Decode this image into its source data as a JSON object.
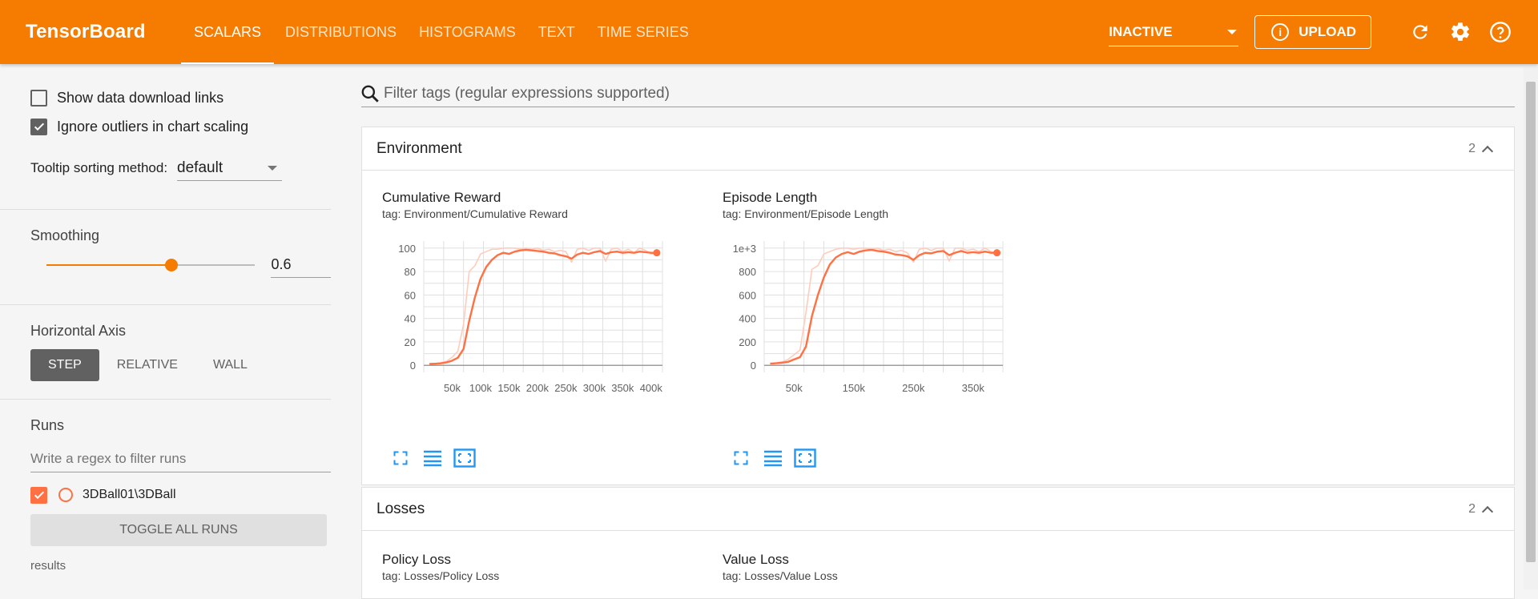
{
  "app": {
    "title": "TensorBoard",
    "tabs": [
      "SCALARS",
      "DISTRIBUTIONS",
      "HISTOGRAMS",
      "TEXT",
      "TIME SERIES"
    ],
    "status_select": "INACTIVE",
    "upload_label": "UPLOAD",
    "accent": "#f57c00"
  },
  "sidebar": {
    "show_download_links": "Show data download links",
    "ignore_outliers": "Ignore outliers in chart scaling",
    "tooltip_label": "Tooltip sorting method:",
    "tooltip_value": "default",
    "smoothing_label": "Smoothing",
    "smoothing_value": "0.6",
    "smoothing_fraction": 0.6,
    "axis_label": "Horizontal Axis",
    "axis_options": [
      "STEP",
      "RELATIVE",
      "WALL"
    ],
    "runs_label": "Runs",
    "runs_filter_placeholder": "Write a regex to filter runs",
    "run_name": "3DBall01\\3DBall",
    "toggle_all": "TOGGLE ALL RUNS",
    "results": "results"
  },
  "main": {
    "filter_placeholder": "Filter tags (regular expressions supported)",
    "groups": [
      {
        "name": "Environment",
        "count": "2"
      },
      {
        "name": "Losses",
        "count": "2"
      }
    ],
    "env_charts": [
      {
        "title": "Cumulative Reward",
        "tag": "tag: Environment/Cumulative Reward"
      },
      {
        "title": "Episode Length",
        "tag": "tag: Environment/Episode Length"
      }
    ],
    "loss_charts": [
      {
        "title": "Policy Loss",
        "tag": "tag: Losses/Policy Loss"
      },
      {
        "title": "Value Loss",
        "tag": "tag: Losses/Value Loss"
      }
    ]
  },
  "chart_data": [
    {
      "type": "line",
      "title": "Cumulative Reward",
      "xlim": [
        0,
        420000
      ],
      "ylim": [
        0,
        100
      ],
      "xticks": [
        50000,
        100000,
        150000,
        200000,
        250000,
        300000,
        350000,
        400000
      ],
      "xtick_labels": [
        "50k",
        "100k",
        "150k",
        "200k",
        "250k",
        "300k",
        "350k",
        "400k"
      ],
      "yticks": [
        0,
        20,
        40,
        60,
        80,
        100
      ],
      "ytick_labels": [
        "0",
        "20",
        "40",
        "60",
        "80",
        "100"
      ],
      "grid": true,
      "series": [
        {
          "role": "smoothed",
          "color": "#ff7043",
          "x": [
            10000,
            20000,
            30000,
            40000,
            50000,
            60000,
            70000,
            80000,
            90000,
            100000,
            110000,
            120000,
            130000,
            140000,
            150000,
            160000,
            170000,
            180000,
            190000,
            200000,
            210000,
            220000,
            230000,
            240000,
            250000,
            260000,
            270000,
            280000,
            290000,
            300000,
            310000,
            320000,
            330000,
            340000,
            350000,
            360000,
            370000,
            380000,
            390000,
            400000,
            410000
          ],
          "y": [
            1.2,
            1.4,
            1.7,
            2.5,
            4,
            6.5,
            14,
            38,
            58,
            74,
            84,
            90,
            94,
            96,
            95,
            97,
            98,
            98.5,
            98,
            97.5,
            97,
            96,
            95.5,
            94,
            93,
            91,
            94.5,
            96,
            95,
            96.5,
            97.5,
            95,
            96.5,
            97,
            96,
            96.5,
            96,
            97,
            96.5,
            96,
            96
          ]
        },
        {
          "role": "raw",
          "color": "#ffccbc",
          "x": [
            10000,
            20000,
            30000,
            40000,
            50000,
            60000,
            70000,
            80000,
            90000,
            100000,
            110000,
            120000,
            130000,
            140000,
            150000,
            160000,
            170000,
            180000,
            190000,
            200000,
            210000,
            220000,
            230000,
            240000,
            250000,
            260000,
            270000,
            280000,
            290000,
            300000,
            310000,
            320000,
            330000,
            340000,
            350000,
            360000,
            370000,
            380000,
            390000,
            400000,
            410000
          ],
          "y": [
            1.2,
            1.5,
            2.2,
            3.5,
            7,
            12,
            35,
            80,
            85,
            95,
            97,
            99,
            99,
            100,
            100,
            100,
            99,
            100,
            99,
            100,
            98,
            99,
            97,
            98,
            97,
            88,
            99,
            100,
            98,
            100,
            100,
            89,
            99,
            100,
            97,
            99,
            96,
            100,
            98,
            95,
            96
          ]
        }
      ]
    },
    {
      "type": "line",
      "title": "Episode Length",
      "xlim": [
        0,
        400000
      ],
      "ylim": [
        0,
        1000
      ],
      "xticks": [
        50000,
        150000,
        250000,
        350000
      ],
      "xtick_labels": [
        "50k",
        "150k",
        "250k",
        "350k"
      ],
      "yticks": [
        0,
        200,
        400,
        600,
        800,
        1000
      ],
      "ytick_labels": [
        "0",
        "200",
        "400",
        "600",
        "800",
        "1e+3"
      ],
      "grid": true,
      "series": [
        {
          "role": "smoothed",
          "color": "#ff7043",
          "x": [
            10000,
            20000,
            30000,
            40000,
            50000,
            60000,
            70000,
            80000,
            90000,
            100000,
            110000,
            120000,
            130000,
            140000,
            150000,
            160000,
            170000,
            180000,
            190000,
            200000,
            210000,
            220000,
            230000,
            240000,
            250000,
            260000,
            270000,
            280000,
            290000,
            300000,
            310000,
            320000,
            330000,
            340000,
            350000,
            360000,
            370000,
            380000,
            390000
          ],
          "y": [
            15,
            18,
            22,
            30,
            50,
            70,
            160,
            420,
            600,
            750,
            860,
            920,
            950,
            965,
            950,
            970,
            980,
            985,
            975,
            970,
            960,
            945,
            940,
            930,
            900,
            940,
            960,
            955,
            970,
            975,
            940,
            960,
            975,
            960,
            965,
            960,
            970,
            960,
            960
          ]
        },
        {
          "role": "raw",
          "color": "#ffccbc",
          "x": [
            10000,
            20000,
            30000,
            40000,
            50000,
            60000,
            70000,
            80000,
            90000,
            100000,
            110000,
            120000,
            130000,
            140000,
            150000,
            160000,
            170000,
            180000,
            190000,
            200000,
            210000,
            220000,
            230000,
            240000,
            250000,
            260000,
            270000,
            280000,
            290000,
            300000,
            310000,
            320000,
            330000,
            340000,
            350000,
            360000,
            370000,
            380000,
            390000
          ],
          "y": [
            15,
            20,
            30,
            50,
            90,
            130,
            450,
            820,
            850,
            950,
            970,
            990,
            1000,
            1000,
            990,
            1000,
            1000,
            990,
            1000,
            980,
            990,
            970,
            980,
            960,
            880,
            990,
            1000,
            980,
            1000,
            1000,
            890,
            1000,
            1000,
            980,
            990,
            970,
            1000,
            970,
            960
          ]
        }
      ]
    }
  ]
}
